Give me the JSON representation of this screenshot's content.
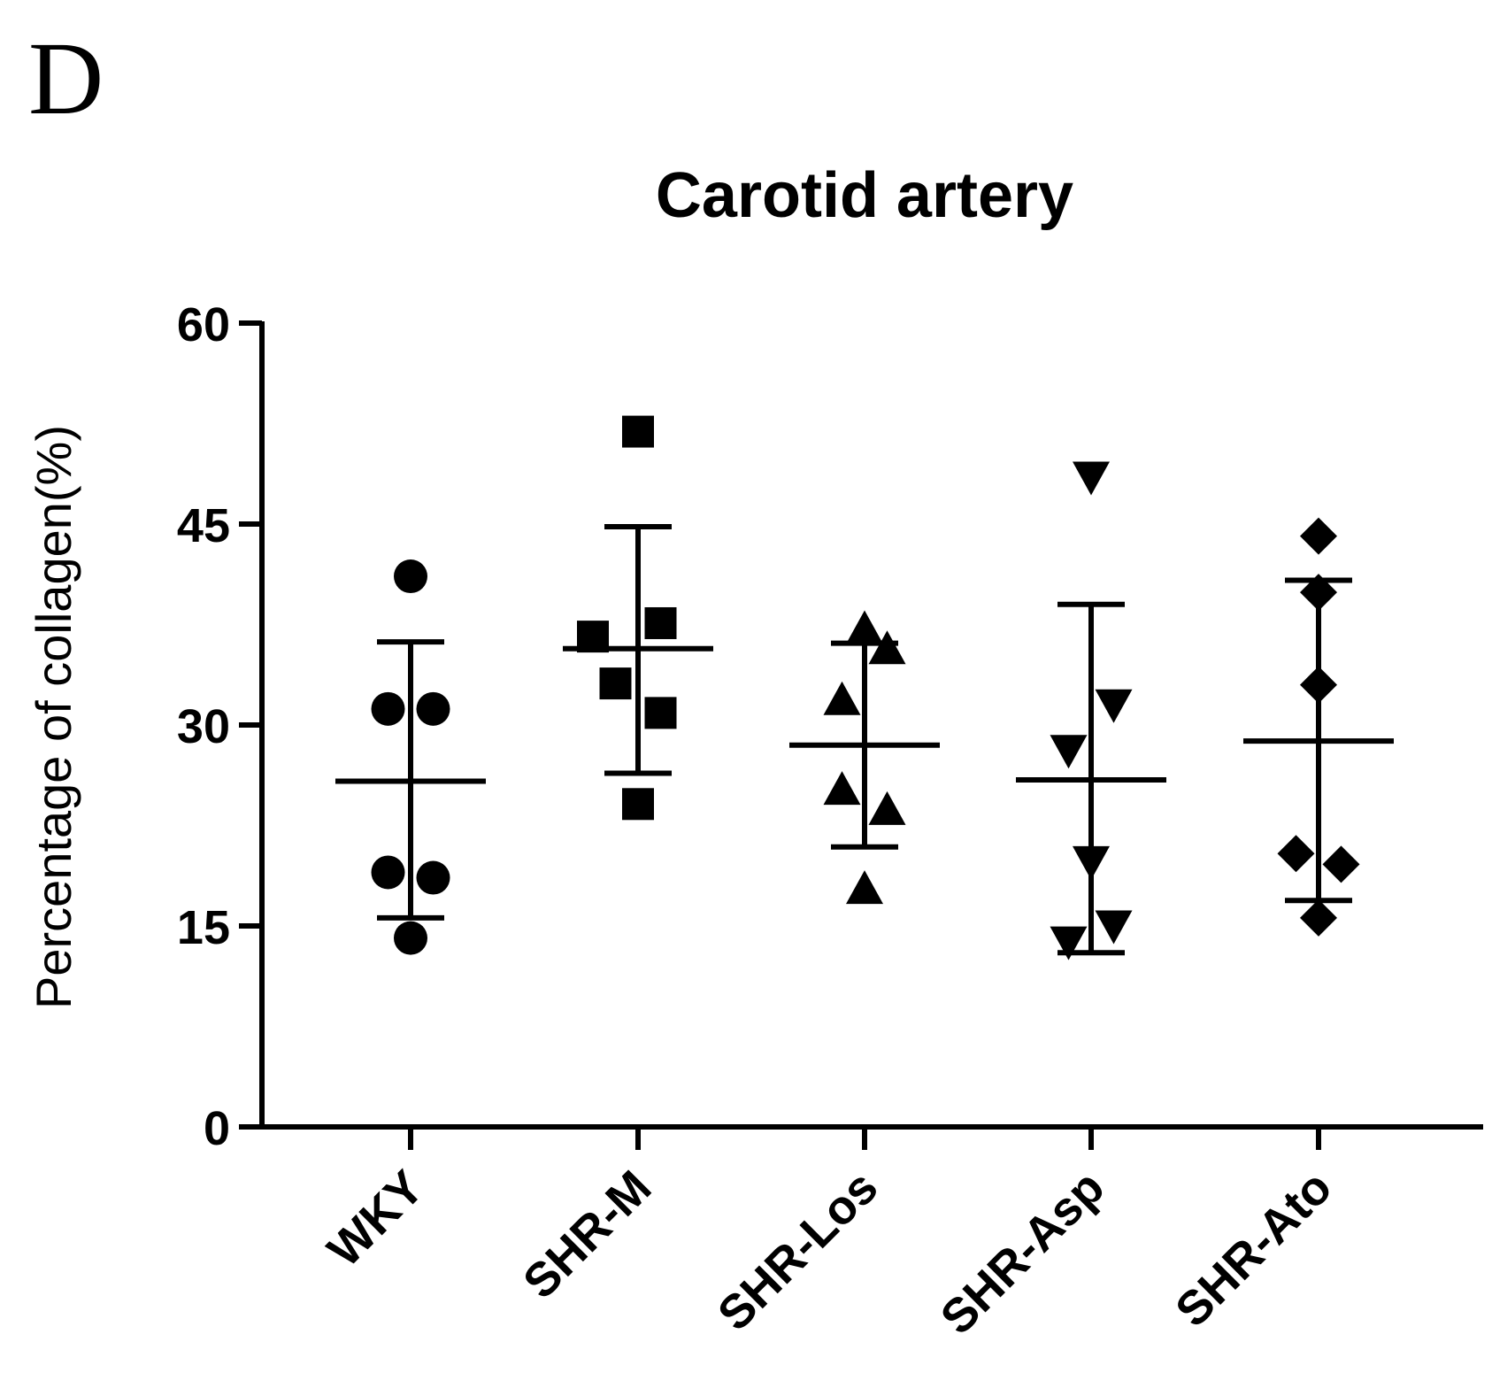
{
  "panel_label": "D",
  "chart_data": {
    "type": "scatter",
    "title": "Carotid artery",
    "xlabel": "",
    "ylabel": "Percentage of collagen(%)",
    "ylim": [
      0,
      60
    ],
    "yticks": [
      "0",
      "15",
      "30",
      "45",
      "60"
    ],
    "categories": [
      "WKY",
      "SHR-M",
      "SHR-Los",
      "SHR-Asp",
      "SHR-Ato"
    ],
    "series": [
      {
        "name": "WKY",
        "marker": "circle",
        "points": [
          [
            -0.1,
            31.2
          ],
          [
            0.1,
            31.2
          ],
          [
            0.0,
            41.1
          ],
          [
            -0.1,
            19.0
          ],
          [
            0.1,
            18.6
          ],
          [
            0.0,
            14.1
          ]
        ],
        "mean": 25.8,
        "sd_low": 15.6,
        "sd_high": 36.2
      },
      {
        "name": "SHR-M",
        "marker": "square",
        "points": [
          [
            0.0,
            51.9
          ],
          [
            -0.2,
            36.6
          ],
          [
            0.1,
            37.6
          ],
          [
            -0.1,
            33.1
          ],
          [
            0.1,
            30.9
          ],
          [
            0.0,
            24.1
          ]
        ],
        "mean": 35.7,
        "sd_low": 26.4,
        "sd_high": 44.8
      },
      {
        "name": "SHR-Los",
        "marker": "triangle-up",
        "points": [
          [
            0.0,
            37.1
          ],
          [
            0.1,
            35.6
          ],
          [
            -0.1,
            31.8
          ],
          [
            -0.1,
            25.1
          ],
          [
            0.1,
            23.6
          ],
          [
            0.0,
            17.7
          ]
        ],
        "mean": 28.5,
        "sd_low": 20.9,
        "sd_high": 36.1
      },
      {
        "name": "SHR-Asp",
        "marker": "triangle-down",
        "points": [
          [
            0.0,
            48.6
          ],
          [
            -0.1,
            28.2
          ],
          [
            0.1,
            31.6
          ],
          [
            0.0,
            19.9
          ],
          [
            -0.1,
            13.9
          ],
          [
            0.1,
            15.1
          ]
        ],
        "mean": 25.9,
        "sd_low": 13.0,
        "sd_high": 39.0
      },
      {
        "name": "SHR-Ato",
        "marker": "diamond",
        "points": [
          [
            0.0,
            44.1
          ],
          [
            0.0,
            39.9
          ],
          [
            0.0,
            33.0
          ],
          [
            -0.1,
            20.4
          ],
          [
            0.1,
            19.6
          ],
          [
            0.0,
            15.6
          ]
        ],
        "mean": 28.8,
        "sd_low": 16.9,
        "sd_high": 40.8
      }
    ]
  }
}
